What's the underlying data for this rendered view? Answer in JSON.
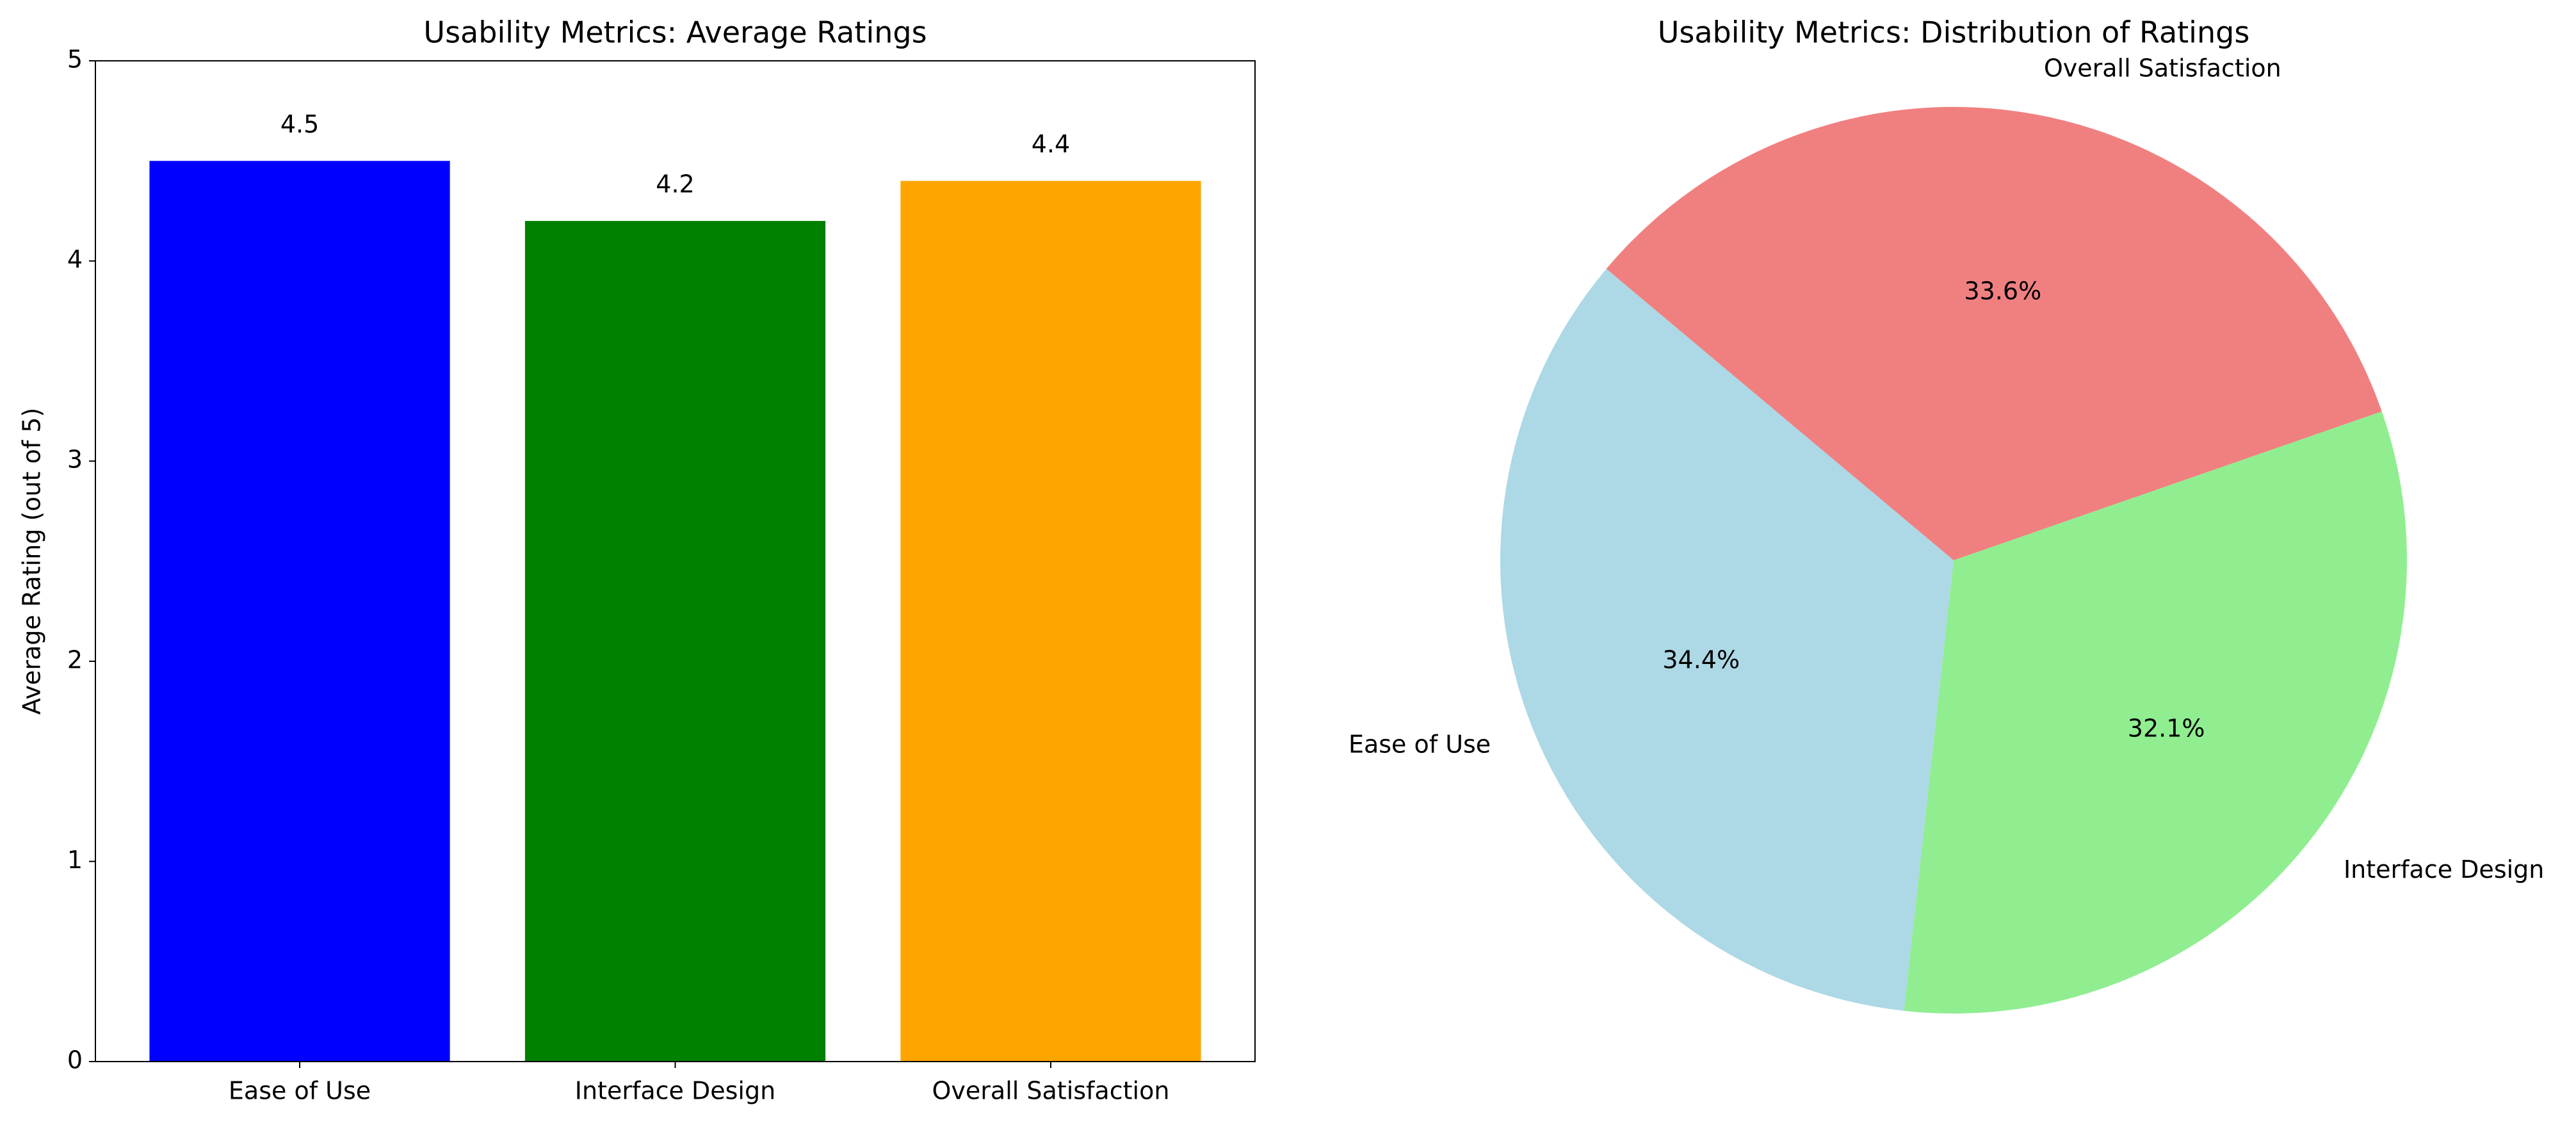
{
  "chart_data": [
    {
      "type": "bar",
      "title": "Usability Metrics: Average Ratings",
      "y_label": "Average Rating (out of 5)",
      "categories": [
        "Ease of Use",
        "Interface Design",
        "Overall Satisfaction"
      ],
      "values": [
        4.5,
        4.2,
        4.4
      ],
      "colors": [
        "#0000ff",
        "#008000",
        "#ffa500"
      ],
      "ylim": [
        0,
        5
      ],
      "yticks": [
        0,
        1,
        2,
        3,
        4,
        5
      ]
    },
    {
      "type": "pie",
      "title": "Usability Metrics: Distribution of Ratings",
      "categories": [
        "Ease of Use",
        "Interface Design",
        "Overall Satisfaction"
      ],
      "values": [
        34.4,
        32.1,
        33.6
      ],
      "value_labels": [
        "34.4%",
        "32.1%",
        "33.6%"
      ],
      "colors": [
        "#add8e6",
        "#90ee90",
        "#f08080"
      ]
    }
  ]
}
